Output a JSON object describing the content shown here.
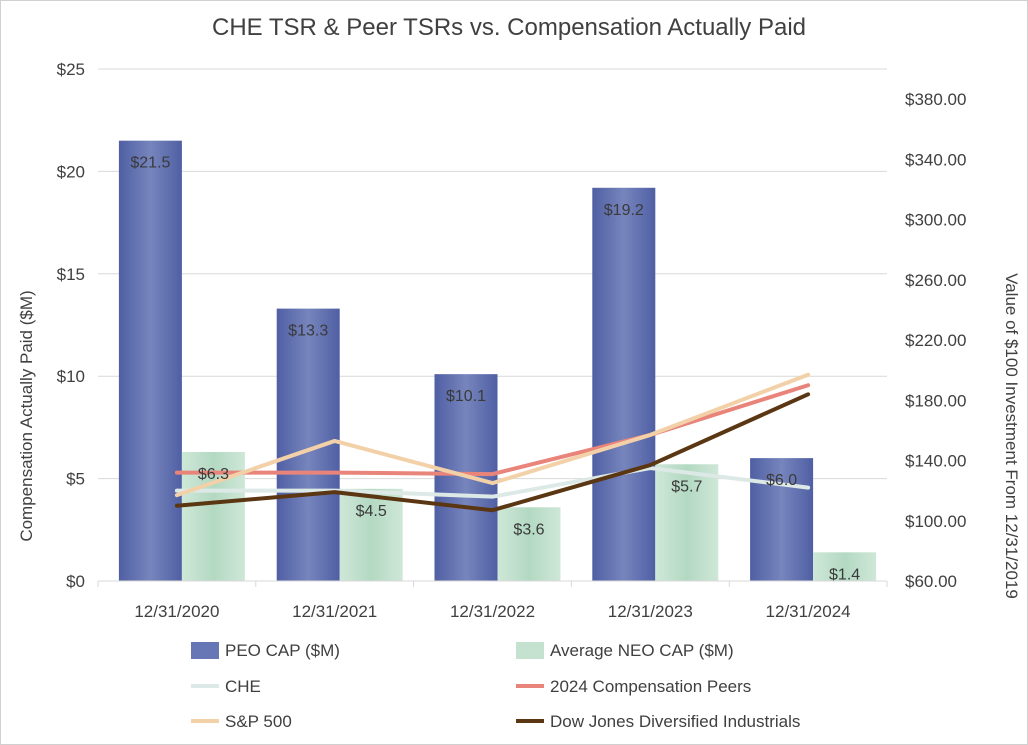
{
  "chart_data": {
    "type": "bar",
    "title": "CHE TSR & Peer TSRs vs. Compensation Actually Paid",
    "categories": [
      "12/31/2020",
      "12/31/2021",
      "12/31/2022",
      "12/31/2023",
      "12/31/2024"
    ],
    "ylabel": "Compensation Actually Paid ($M)",
    "y2label": "Value of $100 Investment From 12/31/2019",
    "ylim": [
      0,
      25
    ],
    "y_ticks": [
      0,
      5,
      10,
      15,
      20,
      25
    ],
    "y_tick_labels": [
      "$0",
      "$5",
      "$10",
      "$15",
      "$20",
      "$25"
    ],
    "y2lim": [
      60,
      400
    ],
    "y2_ticks": [
      60,
      100,
      140,
      180,
      220,
      260,
      300,
      340,
      380
    ],
    "y2_tick_labels": [
      "$60.00",
      "$100.00",
      "$140.00",
      "$180.00",
      "$220.00",
      "$260.00",
      "$300.00",
      "$340.00",
      "$380.00"
    ],
    "bar_series": [
      {
        "name": "PEO CAP ($M)",
        "color": "#7785bd",
        "color_dark": "#4f5fa3",
        "values": [
          21.5,
          13.3,
          10.1,
          19.2,
          6.0
        ],
        "labels": [
          "$21.5",
          "$13.3",
          "$10.1",
          "$19.2",
          "$6.0"
        ]
      },
      {
        "name": "Average NEO CAP ($M)",
        "color": "#b3d9c2",
        "color_dark": "#cfe7d8",
        "values": [
          6.3,
          4.5,
          3.6,
          5.7,
          1.4
        ],
        "labels": [
          "$6.3",
          "$4.5",
          "$3.6",
          "$5.7",
          "$1.4"
        ]
      }
    ],
    "line_series": [
      {
        "name": "CHE",
        "color": "#dde9e6",
        "values": [
          120,
          120,
          116,
          135,
          122
        ]
      },
      {
        "name": "2024 Compensation Peers",
        "color": "#e9847a",
        "values": [
          132,
          132,
          131,
          157,
          190
        ]
      },
      {
        "name": "S&P 500",
        "color": "#f3d1a8",
        "values": [
          117,
          153,
          125,
          157,
          197
        ]
      },
      {
        "name": "Dow Jones Diversified Industrials",
        "color": "#5a3612",
        "values": [
          110,
          119,
          107,
          137,
          184
        ]
      }
    ],
    "legend": [
      {
        "name": "PEO CAP ($M)",
        "kind": "bar",
        "color": "#6776b5"
      },
      {
        "name": "Average NEO CAP ($M)",
        "kind": "bar",
        "color": "#c4e2cf"
      },
      {
        "name": "CHE",
        "kind": "line",
        "color": "#dde9e6"
      },
      {
        "name": "2024 Compensation Peers",
        "kind": "line",
        "color": "#e9847a"
      },
      {
        "name": "S&P 500",
        "kind": "line",
        "color": "#f3d1a8"
      },
      {
        "name": "Dow Jones Diversified Industrials",
        "kind": "line",
        "color": "#5a3612"
      }
    ],
    "legend_position": "bottom",
    "grid": true
  }
}
